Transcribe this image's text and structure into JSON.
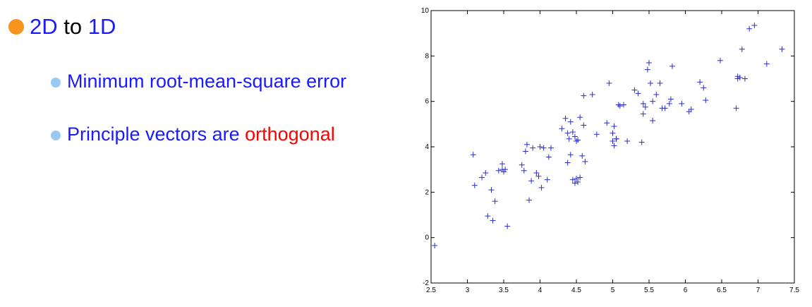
{
  "slide": {
    "bullet1": {
      "part1": "2D",
      "part2": " to ",
      "part3": "1D"
    },
    "bullet2": "Minimum root-mean-square error",
    "bullet3": {
      "part1": "Principle vectors are ",
      "part2": "orthogonal"
    },
    "colors": {
      "blue_text": "#1a1aff",
      "red_text": "#ff0000",
      "orange_bullet": "#f7941d",
      "light_blue_bullet": "#99c9f2",
      "marker": "#2b2bcc"
    }
  },
  "chart_data": {
    "type": "scatter",
    "marker": "+",
    "xlim": [
      2.5,
      7.5
    ],
    "ylim": [
      -2,
      10
    ],
    "xticks": [
      2.5,
      3,
      3.5,
      4,
      4.5,
      5,
      5.5,
      6,
      6.5,
      7,
      7.5
    ],
    "yticks": [
      -2,
      0,
      2,
      4,
      6,
      8,
      10
    ],
    "xtick_labels": [
      "2.5",
      "3",
      "3.5",
      "4",
      "4.5",
      "5",
      "5.5",
      "6",
      "6.5",
      "7",
      "7.5"
    ],
    "ytick_labels": [
      "-2",
      "0",
      "2",
      "4",
      "6",
      "8",
      "10"
    ],
    "grid": false,
    "x": [
      2.55,
      3.08,
      3.1,
      3.2,
      3.25,
      3.28,
      3.33,
      3.38,
      3.35,
      3.43,
      3.48,
      3.5,
      3.55,
      3.52,
      3.75,
      3.78,
      3.8,
      3.82,
      3.85,
      3.88,
      3.9,
      3.95,
      3.98,
      4.02,
      4.05,
      4.1,
      4.12,
      4.15,
      4.3,
      4.35,
      4.38,
      4.4,
      4.42,
      4.45,
      4.48,
      4.5,
      4.52,
      4.55,
      4.6,
      4.62,
      4.38,
      4.42,
      4.45,
      4.48,
      4.5,
      4.52,
      4.55,
      4.58,
      4.6,
      4.72,
      4.78,
      4.92,
      4.95,
      5.0,
      5.02,
      5.05,
      5.08,
      5.1,
      5.15,
      5.2,
      5.3,
      5.35,
      5.4,
      5.42,
      5.45,
      5.48,
      5.5,
      5.52,
      5.55,
      5.6,
      5.65,
      5.68,
      5.72,
      5.78,
      5.8,
      5.82,
      5.95,
      6.05,
      6.08,
      6.2,
      6.25,
      6.28,
      6.48,
      6.7,
      6.72,
      6.75,
      6.78,
      6.82,
      6.88,
      6.95,
      7.12,
      7.33,
      6.72,
      5.55,
      5.42,
      5.0,
      5.02,
      5.05,
      4.0,
      3.48
    ],
    "y": [
      -0.35,
      3.65,
      2.3,
      2.65,
      2.85,
      0.95,
      2.1,
      1.6,
      0.75,
      2.95,
      3.25,
      2.9,
      0.5,
      3.0,
      3.2,
      2.95,
      3.8,
      4.1,
      1.65,
      2.5,
      3.95,
      2.85,
      2.7,
      2.2,
      3.95,
      2.55,
      3.55,
      3.95,
      4.8,
      5.25,
      4.6,
      4.35,
      5.1,
      4.65,
      4.45,
      4.25,
      4.3,
      5.3,
      4.95,
      3.35,
      3.3,
      3.65,
      2.55,
      2.4,
      2.6,
      2.45,
      2.65,
      3.6,
      6.25,
      6.3,
      4.55,
      5.05,
      6.8,
      4.6,
      4.9,
      4.35,
      5.85,
      5.8,
      5.85,
      4.25,
      6.5,
      6.35,
      4.2,
      5.9,
      5.75,
      7.4,
      7.7,
      6.8,
      6.0,
      6.3,
      6.8,
      5.7,
      5.7,
      5.9,
      6.1,
      7.55,
      5.9,
      5.55,
      5.65,
      6.85,
      6.6,
      6.05,
      7.8,
      5.7,
      7.1,
      7.05,
      8.3,
      7.0,
      9.2,
      9.35,
      7.65,
      8.3,
      7.0,
      5.15,
      5.45,
      4.25,
      4.05,
      4.35,
      4.0,
      3.0
    ]
  }
}
